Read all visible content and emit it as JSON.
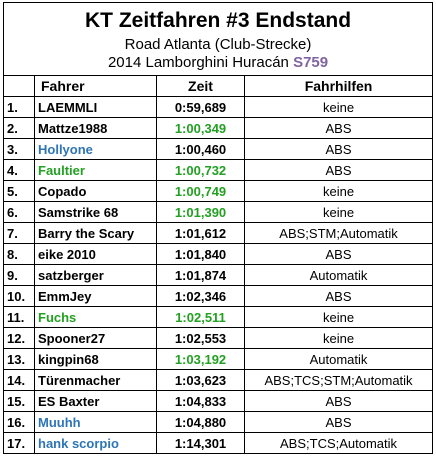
{
  "header": {
    "title": "KT Zeitfahren #3 Endstand",
    "track": "Road Atlanta (Club-Strecke)",
    "car": "2014 Lamborghini Huracán",
    "car_code": "S759",
    "car_code_color": "#8064a2"
  },
  "table": {
    "columns": [
      "Fahrer",
      "Zeit",
      "Fahrhilfen"
    ],
    "rows": [
      {
        "rank": "1.",
        "driver": "LAEMMLI",
        "time": "0:59,689",
        "aids": "keine"
      },
      {
        "rank": "2.",
        "driver": "Mattze1988",
        "time": "1:00,349",
        "aids": "ABS",
        "time_color": "#22a022"
      },
      {
        "rank": "3.",
        "driver": "Hollyone",
        "time": "1:00,460",
        "aids": "ABS",
        "driver_color": "#2e75b6"
      },
      {
        "rank": "4.",
        "driver": "Faultier",
        "time": "1:00,732",
        "aids": "ABS",
        "driver_color": "#22a022",
        "time_color": "#22a022"
      },
      {
        "rank": "5.",
        "driver": "Copado",
        "time": "1:00,749",
        "aids": "keine",
        "time_color": "#22a022"
      },
      {
        "rank": "6.",
        "driver": "Samstrike 68",
        "time": "1:01,390",
        "aids": "keine",
        "time_color": "#22a022"
      },
      {
        "rank": "7.",
        "driver": "Barry the Scary",
        "time": "1:01,612",
        "aids": "ABS;STM;Automatik"
      },
      {
        "rank": "8.",
        "driver": "eike 2010",
        "time": "1:01,840",
        "aids": "ABS"
      },
      {
        "rank": "9.",
        "driver": "satzberger",
        "time": "1:01,874",
        "aids": "Automatik"
      },
      {
        "rank": "10.",
        "driver": "EmmJey",
        "time": "1:02,346",
        "aids": "ABS"
      },
      {
        "rank": "11.",
        "driver": "Fuchs",
        "time": "1:02,511",
        "aids": "keine",
        "driver_color": "#22a022",
        "time_color": "#22a022"
      },
      {
        "rank": "12.",
        "driver": "Spooner27",
        "time": "1:02,553",
        "aids": "keine"
      },
      {
        "rank": "13.",
        "driver": "kingpin68",
        "time": "1:03,192",
        "aids": "Automatik",
        "time_color": "#22a022"
      },
      {
        "rank": "14.",
        "driver": "Türenmacher",
        "time": "1:03,623",
        "aids": "ABS;TCS;STM;Automatik"
      },
      {
        "rank": "15.",
        "driver": "ES Baxter",
        "time": "1:04,833",
        "aids": "ABS"
      },
      {
        "rank": "16.",
        "driver": "Muuhh",
        "time": "1:04,880",
        "aids": "ABS",
        "driver_color": "#2e75b6"
      },
      {
        "rank": "17.",
        "driver": "hank scorpio",
        "time": "1:14,301",
        "aids": "ABS;TCS;Automatik",
        "driver_color": "#2e75b6"
      }
    ]
  }
}
